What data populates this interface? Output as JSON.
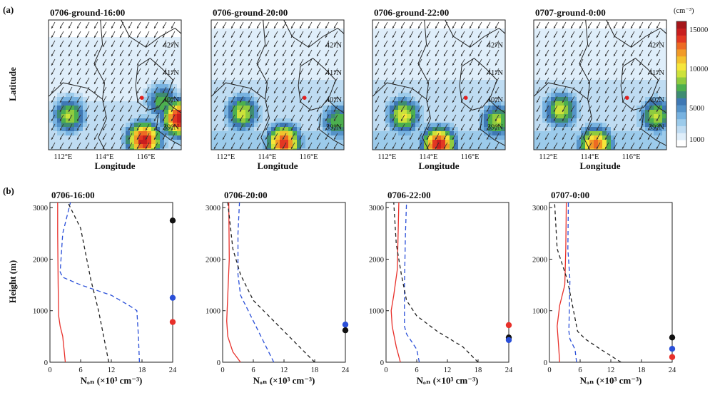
{
  "figure": {
    "panel_a_label": "(a)",
    "panel_b_label": "(b)",
    "colorbar": {
      "unit": "(cm⁻³)",
      "ticks": [
        1000,
        5000,
        10000,
        15000
      ],
      "colors": [
        "#ffffff",
        "#dfeefa",
        "#bfdcf2",
        "#9ccbeb",
        "#77b2e0",
        "#5593c9",
        "#3f78b4",
        "#3e8c72",
        "#4caf4f",
        "#8fcb3e",
        "#cde23a",
        "#f6e63a",
        "#f3c22d",
        "#f19a27",
        "#ed6a23",
        "#e23722",
        "#c81e1e",
        "#a5161a"
      ]
    }
  },
  "chart_data": [
    {
      "type": "heatmap",
      "panel": "a",
      "title": "0706-ground-16:00",
      "xlabel": "Longitude",
      "ylabel": "Latitude",
      "xticks": [
        "112°E",
        "114°E",
        "116°E"
      ],
      "yticks": [
        "42°N",
        "41°N",
        "40°N",
        "39°N"
      ],
      "xlim": [
        111.3,
        117.7
      ],
      "ylim": [
        38.15,
        42.9
      ],
      "hotspots": [
        {
          "lon": 115.9,
          "lat": 38.5,
          "value": 15000
        },
        {
          "lon": 117.6,
          "lat": 39.3,
          "value": 15000
        },
        {
          "lon": 112.3,
          "lat": 39.4,
          "value": 9000
        },
        {
          "lon": 116.8,
          "lat": 39.9,
          "value": 8000
        }
      ],
      "background": 2500
    },
    {
      "type": "heatmap",
      "panel": "a",
      "title": "0706-ground-20:00",
      "xlabel": "Longitude",
      "ylabel": "",
      "xticks": [
        "112°E",
        "114°E",
        "116°E"
      ],
      "yticks": [
        "42°N",
        "41°N",
        "40°N",
        "39°N"
      ],
      "xlim": [
        111.3,
        117.7
      ],
      "ylim": [
        38.15,
        42.9
      ],
      "hotspots": [
        {
          "lon": 114.8,
          "lat": 38.4,
          "value": 14000
        },
        {
          "lon": 112.8,
          "lat": 39.5,
          "value": 9500
        },
        {
          "lon": 117.4,
          "lat": 39.2,
          "value": 8000
        }
      ],
      "background": 3000
    },
    {
      "type": "heatmap",
      "panel": "a",
      "title": "0706-ground-22:00",
      "xlabel": "Longitude",
      "ylabel": "",
      "xticks": [
        "112°E",
        "114°E",
        "116°E"
      ],
      "yticks": [
        "42°N",
        "41°N",
        "40°N",
        "39°N"
      ],
      "xlim": [
        111.3,
        117.7
      ],
      "ylim": [
        38.15,
        42.9
      ],
      "hotspots": [
        {
          "lon": 114.5,
          "lat": 38.3,
          "value": 15000
        },
        {
          "lon": 112.8,
          "lat": 39.4,
          "value": 10000
        },
        {
          "lon": 117.3,
          "lat": 39.2,
          "value": 9000
        }
      ],
      "background": 3000
    },
    {
      "type": "heatmap",
      "panel": "a",
      "title": "0707-ground-0:00",
      "xlabel": "Longitude",
      "ylabel": "",
      "xticks": [
        "112°E",
        "114°E",
        "116°E"
      ],
      "yticks": [
        "42°N",
        "41°N",
        "40°N",
        "39°N"
      ],
      "xlim": [
        111.3,
        117.7
      ],
      "ylim": [
        38.15,
        42.9
      ],
      "hotspots": [
        {
          "lon": 114.3,
          "lat": 38.3,
          "value": 13000
        },
        {
          "lon": 112.6,
          "lat": 39.6,
          "value": 9500
        },
        {
          "lon": 117.2,
          "lat": 39.4,
          "value": 9000
        }
      ],
      "background": 3000
    },
    {
      "type": "line",
      "panel": "b",
      "title": "0706-16:00",
      "xlabel": "Nₒₙ (×10³ cm⁻³)",
      "ylabel": "Height (m)",
      "xlim": [
        0,
        24
      ],
      "ylim": [
        0,
        3100
      ],
      "xticks": [
        0,
        6,
        12,
        18,
        24
      ],
      "yticks": [
        0,
        1000,
        2000,
        3000
      ],
      "series": [
        {
          "color": "#e8302a",
          "dash": "",
          "points": [
            [
              3,
              0
            ],
            [
              2.8,
              200
            ],
            [
              2.5,
              500
            ],
            [
              2,
              700
            ],
            [
              1.7,
              900
            ],
            [
              1.6,
              1500
            ],
            [
              1.5,
              2500
            ],
            [
              1.5,
              3100
            ]
          ]
        },
        {
          "color": "#2a4fd8",
          "dash": "6,4",
          "points": [
            [
              17.5,
              0
            ],
            [
              17.3,
              500
            ],
            [
              17,
              1000
            ],
            [
              15.5,
              1100
            ],
            [
              12,
              1300
            ],
            [
              6,
              1500
            ],
            [
              2.5,
              1650
            ],
            [
              2,
              1750
            ],
            [
              2.5,
              2500
            ],
            [
              4,
              3100
            ]
          ]
        },
        {
          "color": "#222222",
          "dash": "5,4",
          "points": [
            [
              11.5,
              0
            ],
            [
              10.5,
              500
            ],
            [
              9.5,
              1000
            ],
            [
              8,
              1600
            ],
            [
              6,
              2600
            ],
            [
              3.5,
              3100
            ]
          ]
        }
      ],
      "markers": [
        {
          "color": "#111111",
          "y": 2750
        },
        {
          "color": "#2a4fd8",
          "y": 1250
        },
        {
          "color": "#e8302a",
          "y": 780
        }
      ]
    },
    {
      "type": "line",
      "panel": "b",
      "title": "0706-20:00",
      "xlabel": "Nₒₙ (×10³ cm⁻³)",
      "ylabel": "",
      "xlim": [
        0,
        24
      ],
      "ylim": [
        0,
        3100
      ],
      "xticks": [
        0,
        6,
        12,
        18,
        24
      ],
      "yticks": [
        0,
        1000,
        2000,
        3000
      ],
      "series": [
        {
          "color": "#e8302a",
          "dash": "",
          "points": [
            [
              3.5,
              0
            ],
            [
              2,
              200
            ],
            [
              1,
              500
            ],
            [
              0.8,
              800
            ],
            [
              1,
              1300
            ],
            [
              1.3,
              2000
            ],
            [
              1.2,
              3100
            ]
          ]
        },
        {
          "color": "#2a4fd8",
          "dash": "6,4",
          "points": [
            [
              10,
              0
            ],
            [
              8.5,
              300
            ],
            [
              6,
              800
            ],
            [
              3.5,
              1300
            ],
            [
              3,
              1700
            ],
            [
              3,
              2500
            ],
            [
              3.3,
              3100
            ]
          ]
        },
        {
          "color": "#222222",
          "dash": "5,4",
          "points": [
            [
              18,
              0
            ],
            [
              15,
              300
            ],
            [
              11,
              700
            ],
            [
              6,
              1200
            ],
            [
              3.5,
              1700
            ],
            [
              2,
              2200
            ],
            [
              1,
              3100
            ]
          ]
        }
      ],
      "markers": [
        {
          "color": "#2a4fd8",
          "y": 730
        },
        {
          "color": "#111111",
          "y": 620
        }
      ]
    },
    {
      "type": "line",
      "panel": "b",
      "title": "0706-22:00",
      "xlabel": "Nₒₙ (×10³ cm⁻³)",
      "ylabel": "",
      "xlim": [
        0,
        24
      ],
      "ylim": [
        0,
        3100
      ],
      "xticks": [
        0,
        6,
        12,
        18,
        24
      ],
      "yticks": [
        0,
        1000,
        2000,
        3000
      ],
      "series": [
        {
          "color": "#e8302a",
          "dash": "",
          "points": [
            [
              2.8,
              0
            ],
            [
              2,
              300
            ],
            [
              1.2,
              700
            ],
            [
              1,
              1000
            ],
            [
              1.5,
              1300
            ],
            [
              2.2,
              1800
            ],
            [
              2.5,
              3100
            ]
          ]
        },
        {
          "color": "#2a4fd8",
          "dash": "6,4",
          "points": [
            [
              6.5,
              0
            ],
            [
              6,
              250
            ],
            [
              4,
              550
            ],
            [
              3.6,
              700
            ],
            [
              3.6,
              1500
            ],
            [
              3.8,
              2500
            ],
            [
              4,
              3100
            ]
          ]
        },
        {
          "color": "#222222",
          "dash": "5,4",
          "points": [
            [
              18,
              0
            ],
            [
              15,
              300
            ],
            [
              10,
              600
            ],
            [
              6,
              900
            ],
            [
              4,
              1200
            ],
            [
              3,
              1700
            ],
            [
              2,
              2300
            ],
            [
              1.5,
              3100
            ]
          ]
        }
      ],
      "markers": [
        {
          "color": "#e8302a",
          "y": 720
        },
        {
          "color": "#111111",
          "y": 480
        },
        {
          "color": "#2a4fd8",
          "y": 430
        }
      ]
    },
    {
      "type": "line",
      "panel": "b",
      "title": "0707-0:00",
      "xlabel": "Nₒₙ (×10³ cm⁻³)",
      "ylabel": "",
      "xlim": [
        0,
        24
      ],
      "ylim": [
        0,
        3100
      ],
      "xticks": [
        0,
        6,
        12,
        18,
        24
      ],
      "yticks": [
        0,
        1000,
        2000,
        3000
      ],
      "series": [
        {
          "color": "#e8302a",
          "dash": "",
          "points": [
            [
              2,
              0
            ],
            [
              1.8,
              300
            ],
            [
              1.5,
              700
            ],
            [
              2,
              1100
            ],
            [
              3,
              1500
            ],
            [
              3.2,
              2200
            ],
            [
              3.3,
              3100
            ]
          ]
        },
        {
          "color": "#2a4fd8",
          "dash": "6,4",
          "points": [
            [
              5.3,
              0
            ],
            [
              5,
              250
            ],
            [
              4,
              450
            ],
            [
              3.8,
              600
            ],
            [
              3.9,
              1100
            ],
            [
              4,
              1600
            ],
            [
              3.6,
              2200
            ],
            [
              3.7,
              3100
            ]
          ]
        },
        {
          "color": "#222222",
          "dash": "5,4",
          "points": [
            [
              14,
              0
            ],
            [
              10,
              250
            ],
            [
              7,
              450
            ],
            [
              5.5,
              600
            ],
            [
              4.5,
              1100
            ],
            [
              3.5,
              1600
            ],
            [
              1.5,
              2200
            ],
            [
              1,
              3100
            ]
          ]
        }
      ],
      "markers": [
        {
          "color": "#111111",
          "y": 480
        },
        {
          "color": "#2a4fd8",
          "y": 260
        },
        {
          "color": "#e8302a",
          "y": 100
        }
      ]
    }
  ]
}
